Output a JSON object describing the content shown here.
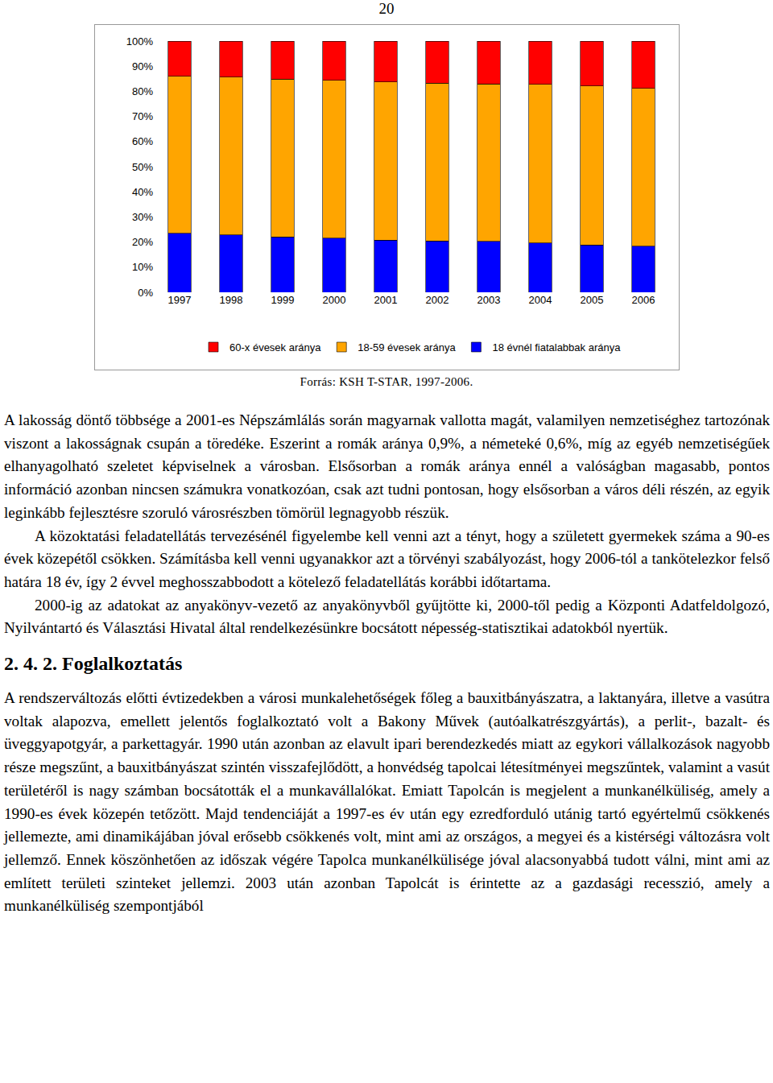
{
  "page_number": "20",
  "chart_data": {
    "type": "bar",
    "stacked": true,
    "categories": [
      "1997",
      "1998",
      "1999",
      "2000",
      "2001",
      "2002",
      "2003",
      "2004",
      "2005",
      "2006"
    ],
    "series": [
      {
        "name": "18 évnél fiatalabbak aránya",
        "color": "#0000ff",
        "values": [
          23.4,
          22.8,
          22.1,
          21.5,
          20.8,
          20.5,
          20.2,
          19.6,
          18.9,
          18.3
        ]
      },
      {
        "name": "18-59 évesek aránya",
        "color": "#ffa500",
        "values": [
          62.5,
          62.8,
          62.8,
          62.8,
          62.9,
          62.8,
          62.8,
          63.1,
          63.2,
          62.8
        ]
      },
      {
        "name": "60-x évesek aránya",
        "color": "#ff0000",
        "values": [
          14.1,
          14.4,
          15.1,
          15.7,
          16.3,
          16.7,
          17.0,
          17.3,
          17.9,
          18.9
        ]
      }
    ],
    "ylim": [
      0,
      100
    ],
    "yticks": [
      {
        "value": 0,
        "label": "0%"
      },
      {
        "value": 10,
        "label": "10%"
      },
      {
        "value": 20,
        "label": "20%"
      },
      {
        "value": 30,
        "label": "30%"
      },
      {
        "value": 40,
        "label": "40%"
      },
      {
        "value": 50,
        "label": "50%"
      },
      {
        "value": 60,
        "label": "60%"
      },
      {
        "value": 70,
        "label": "70%"
      },
      {
        "value": 80,
        "label": "80%"
      },
      {
        "value": 90,
        "label": "90%"
      },
      {
        "value": 100,
        "label": "100%"
      }
    ],
    "grid": false,
    "legend": "bottom"
  },
  "source": "Forrás: KSH T-STAR, 1997-2006.",
  "paragraphs": [
    "A lakosság döntő többsége a 2001-es Népszámlálás során magyarnak vallotta magát, valamilyen nemzetiséghez tartozónak viszont a lakosságnak csupán a töredéke. Eszerint a romák aránya 0,9%, a németeké 0,6%, míg az egyéb nemzetiségűek elhanyagolható szeletet képviselnek a városban. Elsősorban a romák aránya ennél a valóságban magasabb, pontos információ azonban nincsen számukra vonatkozóan, csak azt tudni pontosan, hogy elsősorban a város déli részén, az egyik leginkább fejlesztésre szoruló városrészben tömörül legnagyobb részük.",
    "A közoktatási feladatellátás tervezésénél figyelembe kell venni azt a tényt, hogy a született gyermekek száma a 90-es évek közepétől csökken. Számításba kell venni ugyanakkor azt a törvényi szabályozást, hogy 2006-tól a tankötelezkor felső határa 18 év, így 2 évvel meghosszabbodott a kötelező feladatellátás korábbi időtartama.",
    "2000-ig az adatokat az anyakönyv-vezető az anyakönyvből gyűjtötte ki, 2000-től pedig a Központi Adatfeldolgozó, Nyilvántartó és Választási Hivatal által rendelkezésünkre bocsátott népesség-statisztikai adatokból nyertük."
  ],
  "heading": "2. 4. 2. Foglalkoztatás",
  "paragraphs_after_heading": [
    "A rendszerváltozás előtti évtizedekben a városi munkalehetőségek főleg a bauxitbányászatra, a laktanyára, illetve a vasútra voltak alapozva, emellett jelentős foglalkoztató volt a Bakony Művek (autóalkatrészgyártás), a perlit-, bazalt- és üveggyapotgyár, a parkettagyár. 1990 után azonban az elavult ipari berendezkedés miatt az egykori vállalkozások nagyobb része megszűnt, a bauxitbányászat szintén visszafejlődött, a honvédség tapolcai létesítményei megszűntek, valamint a vasút területéről is nagy számban bocsátották el a munkavállalókat. Emiatt Tapolcán is megjelent a munkanélküliség, amely a 1990-es évek közepén tetőzött. Majd tendenciáját a 1997-es év után egy ezredforduló utánig tartó egyértelmű csökkenés jellemezte, ami dinamikájában jóval erősebb csökkenés volt, mint ami az országos, a megyei és a kistérségi változásra volt jellemző. Ennek köszönhetően az időszak végére Tapolca munkanélkülisége jóval alacsonyabbá tudott válni, mint ami az említett területi szinteket jellemzi. 2003 után azonban Tapolcát is érintette az a gazdasági recesszió, amely a munkanélküliség szempontjából"
  ]
}
